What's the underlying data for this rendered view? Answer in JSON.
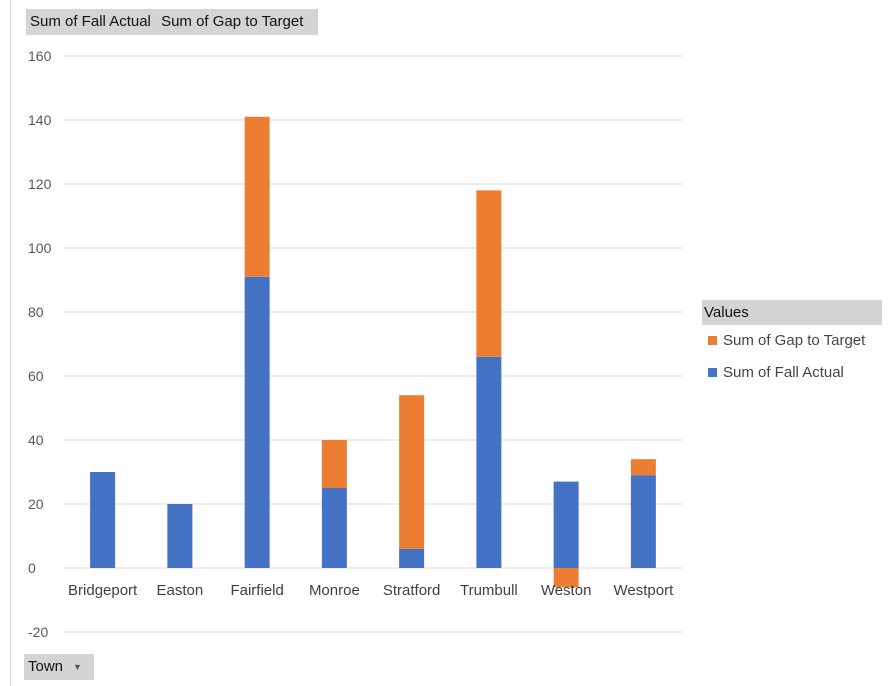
{
  "field_buttons": {
    "values": [
      "Sum of Fall Actual",
      "Sum of Gap to Target"
    ],
    "axis_field": "Town"
  },
  "legend": {
    "title": "Values",
    "items": [
      {
        "label": "Sum of Gap to Target",
        "color": "#ed7d31"
      },
      {
        "label": "Sum of Fall Actual",
        "color": "#4472c4"
      }
    ]
  },
  "chart_data": {
    "type": "bar",
    "stacked": true,
    "categories": [
      "Bridgeport",
      "Easton",
      "Fairfield",
      "Monroe",
      "Stratford",
      "Trumbull",
      "Weston",
      "Westport"
    ],
    "series": [
      {
        "name": "Sum of Fall Actual",
        "color": "#4472c4",
        "values": [
          30,
          20,
          91,
          25,
          6,
          66,
          27,
          29
        ]
      },
      {
        "name": "Sum of Gap to Target",
        "color": "#ed7d31",
        "values": [
          0,
          0,
          50,
          15,
          48,
          52,
          -6,
          5
        ]
      }
    ],
    "ylim": [
      -20,
      160
    ],
    "yticks": [
      -20,
      0,
      20,
      40,
      60,
      80,
      100,
      120,
      140,
      160
    ],
    "grid": true,
    "legend_position": "right"
  }
}
